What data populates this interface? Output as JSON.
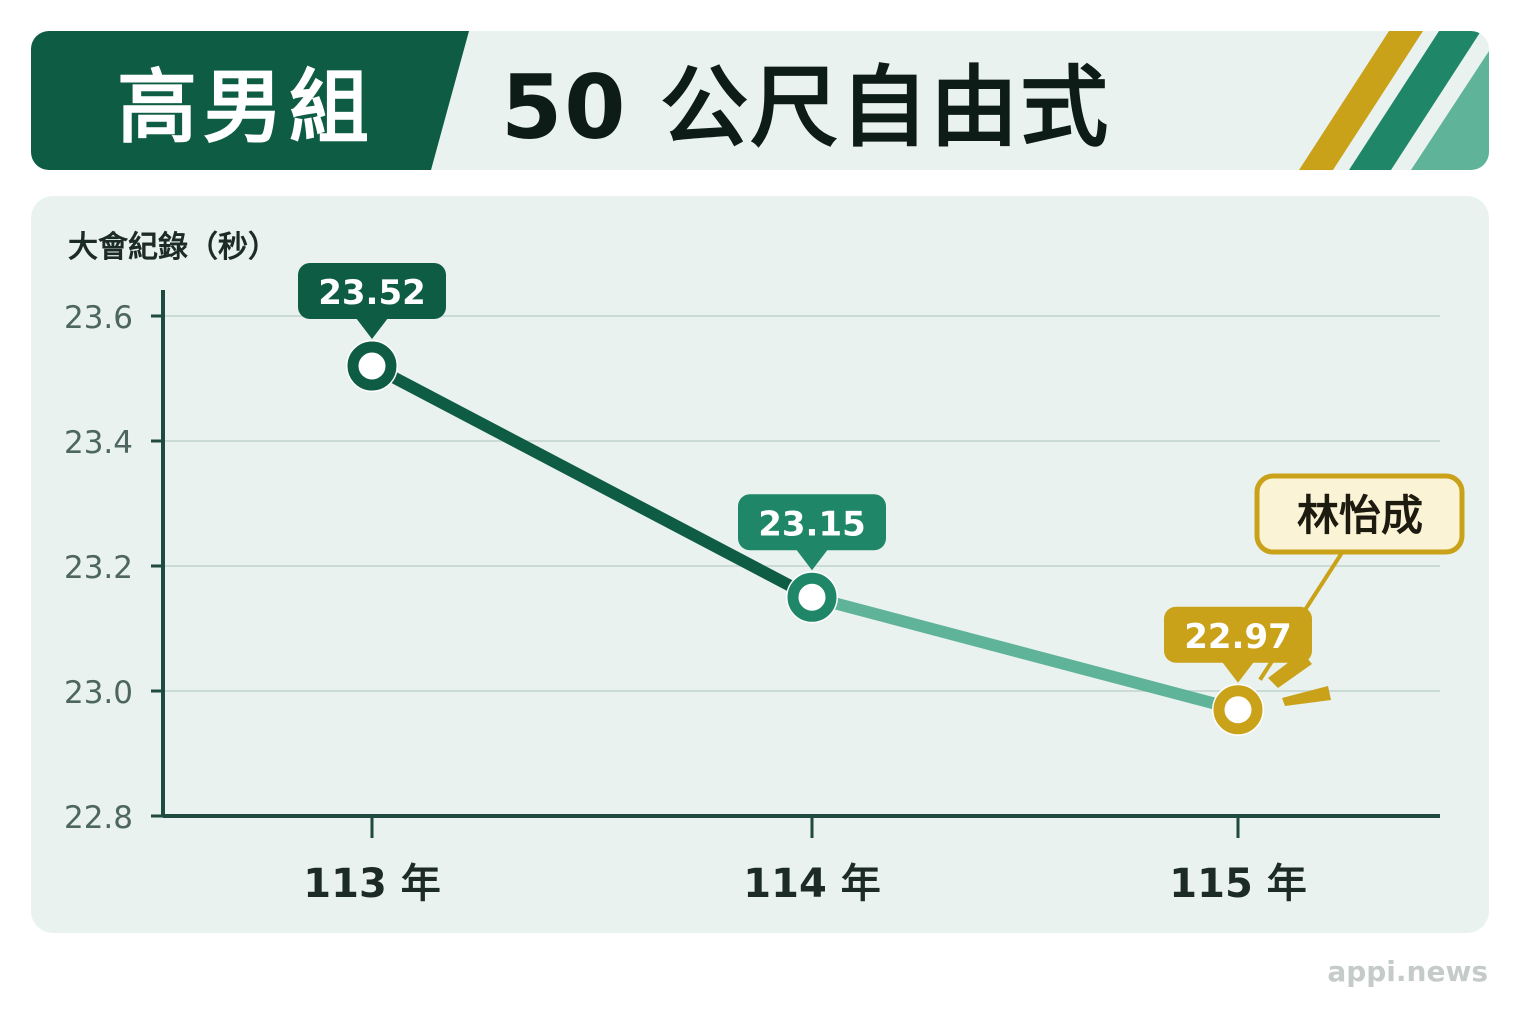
{
  "header": {
    "category": "高男組",
    "event": "50 公尺自由式"
  },
  "colors": {
    "dark_green": "#0f5c45",
    "mid_green": "#1f8767",
    "light_green": "#5fb399",
    "gold": "#c9a21a",
    "grid": "#c9dbd4",
    "axis": "#1e4a40"
  },
  "chart_data": {
    "type": "line",
    "ylabel": "大會紀錄（秒）",
    "categories": [
      "113 年",
      "114 年",
      "115 年"
    ],
    "series": [
      {
        "values": [
          23.52,
          23.15,
          22.97
        ],
        "labels": [
          "23.52",
          "23.15",
          "22.97"
        ]
      }
    ],
    "ylim": [
      22.8,
      23.6
    ],
    "yticks": [
      22.8,
      23.0,
      23.2,
      23.4,
      23.6
    ],
    "ytick_labels": [
      "22.8",
      "23.0",
      "23.2",
      "23.4",
      "23.6"
    ],
    "grid": true,
    "annotation": {
      "text": "林怡成",
      "target_index": 2
    }
  },
  "watermark": "appi.news"
}
